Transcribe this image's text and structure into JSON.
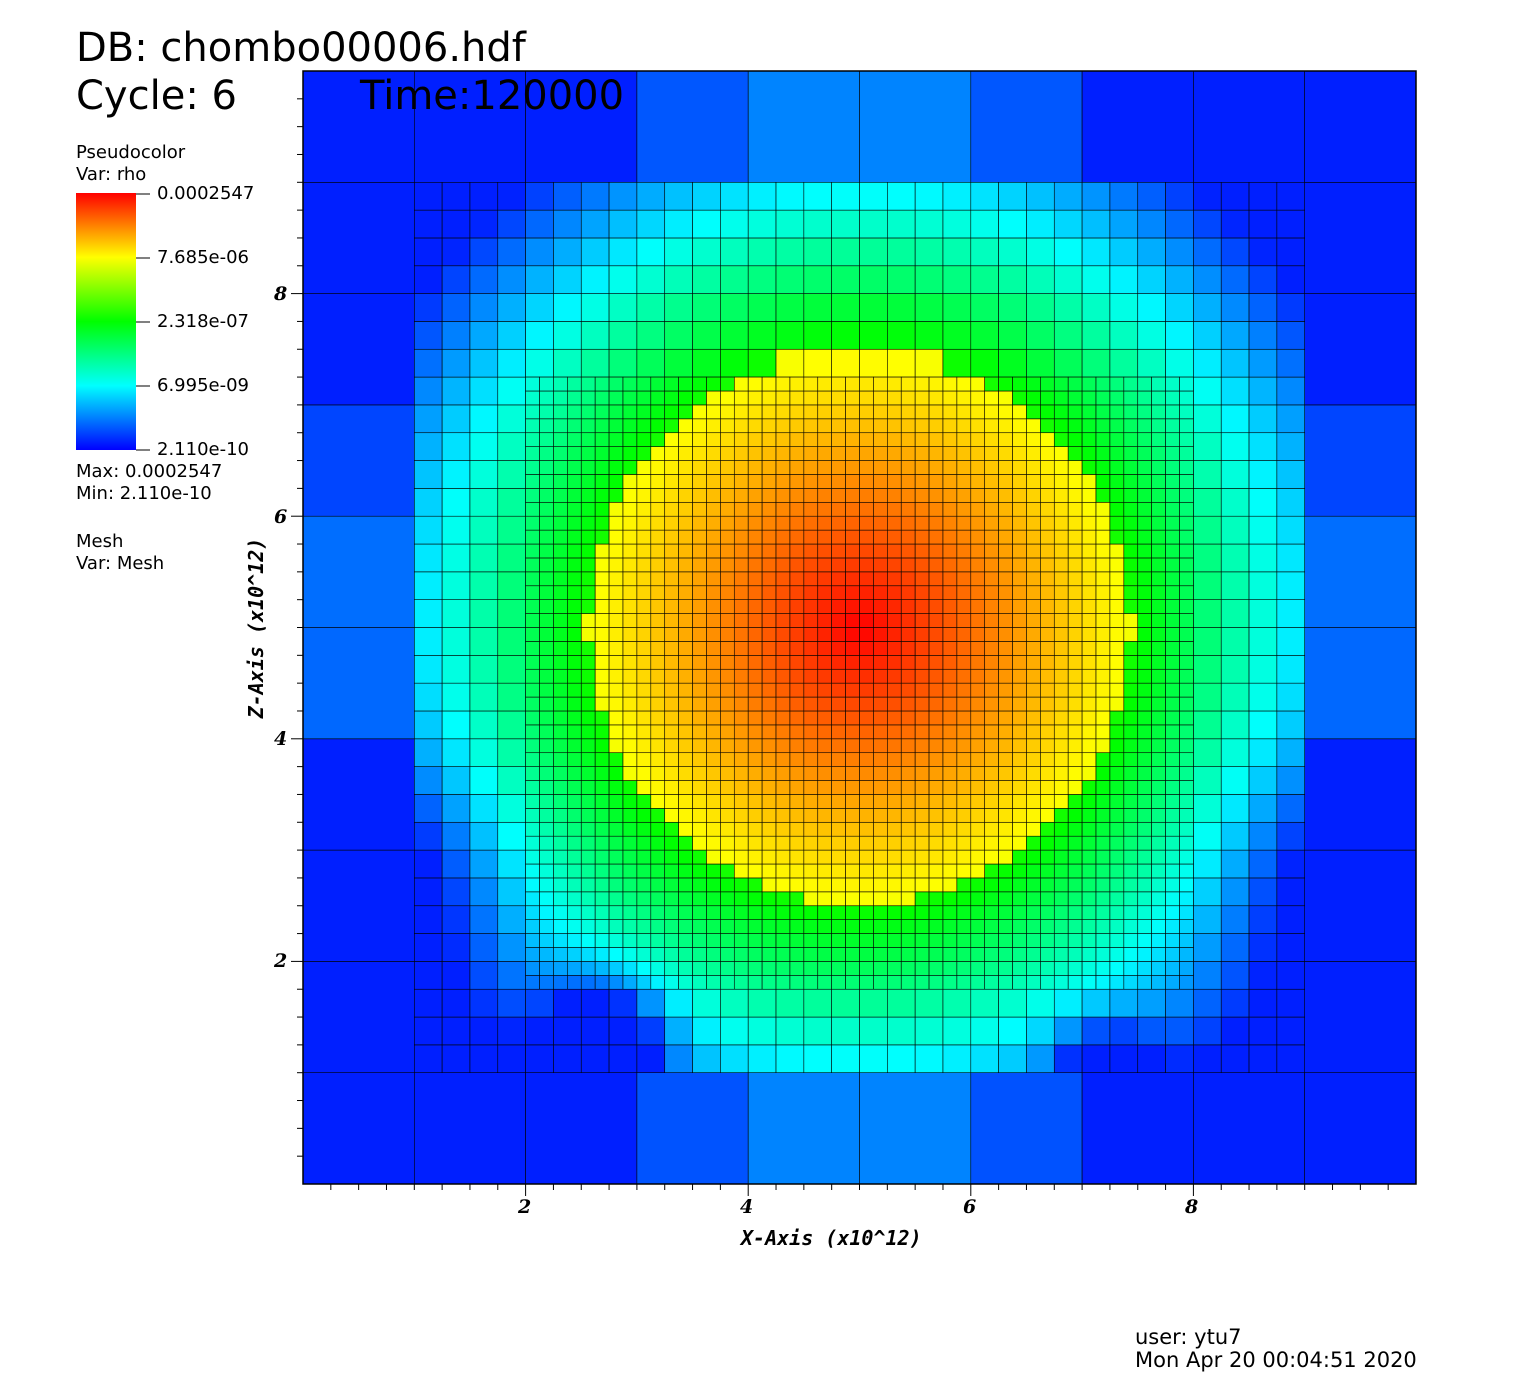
{
  "header": {
    "db_line": "DB: chombo00006.hdf",
    "cycle_line": "Cycle: 6",
    "time_line": "Time:120000"
  },
  "legend": {
    "plot_type": "Pseudocolor",
    "var_line": "Var: rho",
    "ticks": [
      "0.0002547",
      "7.685e-06",
      "2.318e-07",
      "6.995e-09",
      "2.110e-10"
    ],
    "max_line": "Max:  0.0002547",
    "min_line": "Min:  2.110e-10",
    "mesh_title": "Mesh",
    "mesh_var_line": "Var: Mesh",
    "colors": [
      "#ff0000",
      "#ffff00",
      "#00ff00",
      "#00ffff",
      "#0000ff"
    ]
  },
  "footer": {
    "user_line": "user: ytu7",
    "date_line": "Mon Apr 20 00:04:51 2020"
  },
  "chart_data": {
    "type": "heatmap",
    "title": "",
    "xlabel": "X-Axis (x10^12)",
    "ylabel": "Z-Axis (x10^12)",
    "xlim": [
      0,
      10
    ],
    "ylim": [
      0,
      10
    ],
    "x_ticks": [
      "2",
      "4",
      "6",
      "8"
    ],
    "y_ticks": [
      "2",
      "4",
      "6",
      "8"
    ],
    "colorbar_scale": "log",
    "variable": "rho",
    "value_max": 0.0002547,
    "value_min": 2.11e-10,
    "mesh_overlay": true,
    "density_peak_center": [
      5.0,
      5.0
    ]
  }
}
